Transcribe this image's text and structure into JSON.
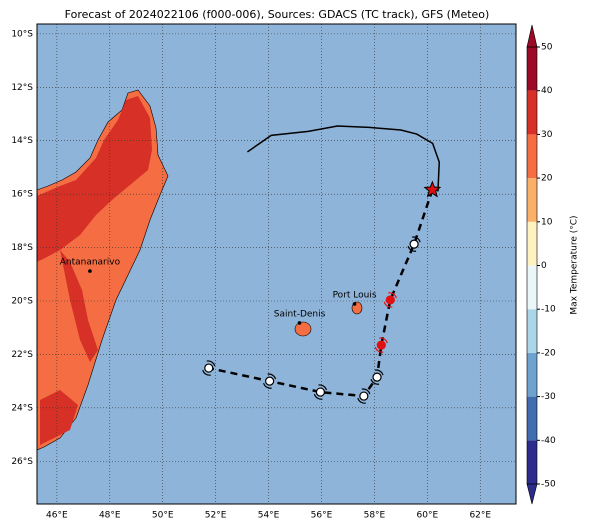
{
  "title": "Forecast of 2024022106 (f000-006), Sources: GDACS (TC track), GFS (Meteo)",
  "map": {
    "xlim": [
      45.25,
      63.35
    ],
    "ylim": [
      -27.6,
      -9.63
    ],
    "xticks": [
      {
        "value": 46,
        "label": "46°E"
      },
      {
        "value": 48,
        "label": "48°E"
      },
      {
        "value": 50,
        "label": "50°E"
      },
      {
        "value": 52,
        "label": "52°E"
      },
      {
        "value": 54,
        "label": "54°E"
      },
      {
        "value": 56,
        "label": "56°E"
      },
      {
        "value": 58,
        "label": "58°E"
      },
      {
        "value": 60,
        "label": "60°E"
      },
      {
        "value": 62,
        "label": "62°E"
      }
    ],
    "yticks": [
      {
        "value": -10,
        "label": "10°S"
      },
      {
        "value": -12,
        "label": "12°S"
      },
      {
        "value": -14,
        "label": "14°S"
      },
      {
        "value": -16,
        "label": "16°S"
      },
      {
        "value": -18,
        "label": "18°S"
      },
      {
        "value": -20,
        "label": "20°S"
      },
      {
        "value": -22,
        "label": "22°S"
      },
      {
        "value": -24,
        "label": "24°S"
      },
      {
        "value": -26,
        "label": "26°S"
      }
    ],
    "places": [
      {
        "name": "Antananarivo",
        "lon": 47.25,
        "lat": -18.88
      },
      {
        "name": "Saint-Denis",
        "lon": 55.17,
        "lat": -20.82
      },
      {
        "name": "Port Louis",
        "lon": 57.25,
        "lat": -20.11
      }
    ],
    "past_track": {
      "lon": [
        53.2,
        54.1,
        55.5,
        56.6,
        57.8,
        59.0,
        59.6,
        60.2,
        60.45,
        60.4
      ],
      "lat": [
        -14.42,
        -13.8,
        -13.65,
        -13.45,
        -13.5,
        -13.6,
        -13.75,
        -14.1,
        -14.8,
        -15.9
      ]
    },
    "forecast_track": {
      "lon": [
        60.19,
        59.5,
        58.6,
        58.26,
        58.1,
        57.6,
        55.96,
        54.04,
        51.74
      ],
      "lat": [
        -15.84,
        -17.87,
        -19.96,
        -21.65,
        -22.85,
        -23.56,
        -23.41,
        -23.0,
        -22.51
      ],
      "marker_colors": [
        "#e01010",
        "#ffffff",
        "#e01010",
        "#e01010",
        "#ffffff",
        "#ffffff",
        "#ffffff",
        "#ffffff",
        "#ffffff"
      ]
    }
  },
  "colorbar": {
    "label": "Max Temperature (°C)",
    "lim": [
      -50,
      50
    ],
    "ticks": [
      -50,
      -40,
      -30,
      -20,
      -10,
      0,
      10,
      20,
      30,
      40,
      50
    ],
    "colors": [
      "#2b2c8c",
      "#3f6db0",
      "#6fa3cf",
      "#abd5e8",
      "#eaf6f8",
      "#fdf2c0",
      "#fbb06a",
      "#f46d43",
      "#d73027",
      "#9b0b26"
    ]
  }
}
